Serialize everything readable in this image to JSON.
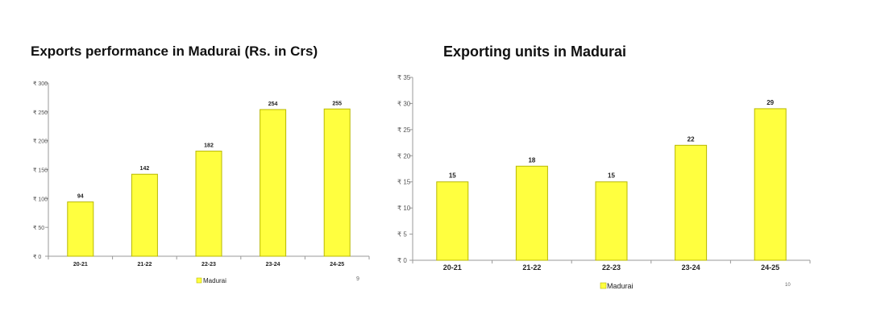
{
  "chart_data": [
    {
      "type": "bar",
      "title": "Exports performance in Madurai (Rs. in Crs)",
      "categories": [
        "20-21",
        "21-22",
        "22-23",
        "23-24",
        "24-25"
      ],
      "series": [
        {
          "name": "Madurai",
          "values": [
            94,
            142,
            182,
            254,
            255
          ],
          "labels": [
            "94",
            "142",
            "182",
            "254",
            "255"
          ]
        }
      ],
      "ylim": [
        0,
        300
      ],
      "yticks": [
        "₹ 0",
        "₹ 50",
        "₹ 100",
        "₹ 150",
        "₹ 200",
        "₹ 250",
        "₹ 300"
      ],
      "legend": "bottom",
      "grid": false,
      "page_number": "9",
      "bar_color": "#ffff3f",
      "bar_stroke": "#b8b800"
    },
    {
      "type": "bar",
      "title": "Exporting units in Madurai",
      "categories": [
        "20-21",
        "21-22",
        "22-23",
        "23-24",
        "24-25"
      ],
      "series": [
        {
          "name": "Madurai",
          "values": [
            15,
            18,
            15,
            22,
            29
          ],
          "labels": [
            "15",
            "18",
            "15",
            "22",
            "29"
          ]
        }
      ],
      "ylim": [
        0,
        35
      ],
      "yticks": [
        "₹ 0",
        "₹ 5",
        "₹ 10",
        "₹ 15",
        "₹ 20",
        "₹ 25",
        "₹ 30",
        "₹ 35"
      ],
      "legend": "bottom",
      "grid": false,
      "page_number": "10",
      "bar_color": "#ffff3f",
      "bar_stroke": "#b8b800"
    }
  ]
}
